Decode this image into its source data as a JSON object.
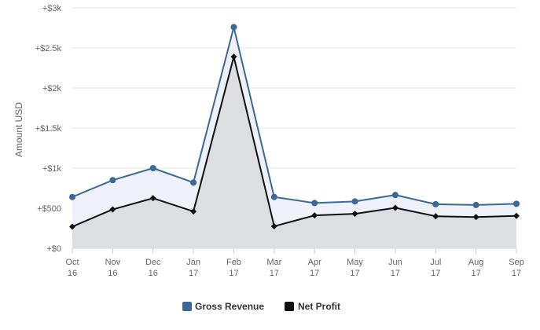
{
  "chart_data": {
    "type": "line",
    "title": "",
    "xlabel": "",
    "ylabel": "Amount USD",
    "categories": [
      [
        "Oct",
        "16"
      ],
      [
        "Nov",
        "16"
      ],
      [
        "Dec",
        "16"
      ],
      [
        "Jan",
        "17"
      ],
      [
        "Feb",
        "17"
      ],
      [
        "Mar",
        "17"
      ],
      [
        "Apr",
        "17"
      ],
      [
        "May",
        "17"
      ],
      [
        "Jun",
        "17"
      ],
      [
        "Jul",
        "17"
      ],
      [
        "Aug",
        "17"
      ],
      [
        "Sep",
        "17"
      ]
    ],
    "ylim": [
      0,
      3000
    ],
    "yticks": [
      {
        "value": 0,
        "label": "+$0"
      },
      {
        "value": 500,
        "label": "+$500"
      },
      {
        "value": 1000,
        "label": "+$1k"
      },
      {
        "value": 1500,
        "label": "+$1.5k"
      },
      {
        "value": 2000,
        "label": "+$2k"
      },
      {
        "value": 2500,
        "label": "+$2.5k"
      },
      {
        "value": 3000,
        "label": "+$3k"
      }
    ],
    "grid": true,
    "legend_position": "bottom-center",
    "series": [
      {
        "name": "Gross Revenue",
        "color": "#3c6897",
        "fill": "#eef1f9",
        "marker": "circle",
        "values": [
          640,
          850,
          1000,
          820,
          2760,
          640,
          565,
          585,
          665,
          550,
          540,
          555
        ]
      },
      {
        "name": "Net Profit",
        "color": "#111111",
        "fill": "#dcdee2",
        "marker": "diamond",
        "values": [
          270,
          485,
          625,
          460,
          2390,
          275,
          410,
          430,
          505,
          400,
          390,
          405
        ]
      }
    ]
  }
}
